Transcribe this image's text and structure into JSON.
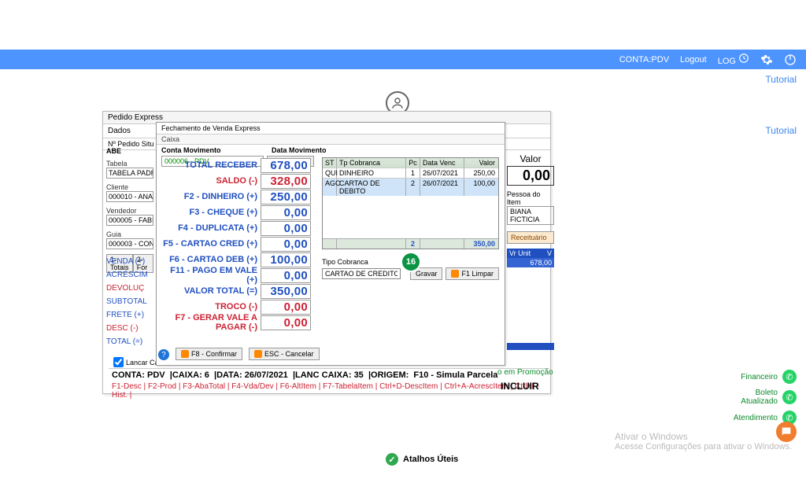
{
  "topbar": {
    "conta": "CONTA:PDV",
    "logout": "Logout",
    "log": "LOG"
  },
  "tutorial": "Tutorial",
  "pedido": {
    "title": "Pedido Express",
    "tabs": "Dados",
    "meta": "Nº Pedido    Situ",
    "abe": "ABE",
    "tabela_lbl": "Tabela",
    "tabela_val": "TABELA PADRA",
    "cliente_lbl": "Cliente",
    "cliente_val": "000010 - ANA MAR",
    "vendedor_lbl": "Vendedor",
    "vendedor_val": "000005 - FABIANA",
    "guia_lbl": "Guia",
    "guia_val": "000003 - CONSUM",
    "mini1": "1-Totais",
    "mini2": "2-For",
    "ls_venda": "VENDA (+)",
    "ls_acresc": "ACRÉSCIM",
    "ls_dev": "DEVOLUÇ",
    "ls_sub": "SUBTOTAL",
    "ls_frete": "FRETE (+)",
    "ls_desc": "DESC (-)",
    "ls_total": "TOTAL (=)"
  },
  "fech": {
    "title": "Fechamento de Venda Express",
    "caixa": "Caixa",
    "conta_lbl": "Conta Movimento",
    "conta_val": "000006 - PDV",
    "data_lbl": "Data Movimento",
    "data_val": "26/07/2021",
    "rows": [
      {
        "lbl": "TOTAL RECEBER",
        "val": "678,00",
        "color": "blue"
      },
      {
        "lbl": "SALDO (-)",
        "val": "328,00",
        "color": "red"
      },
      {
        "lbl": "F2 - DINHEIRO (+)",
        "val": "250,00",
        "color": "blue"
      },
      {
        "lbl": "F3 - CHEQUE (+)",
        "val": "0,00",
        "color": "blue"
      },
      {
        "lbl": "F4 - DUPLICATA (+)",
        "val": "0,00",
        "color": "blue"
      },
      {
        "lbl": "F5 - CARTAO CRED (+)",
        "val": "0,00",
        "color": "blue"
      },
      {
        "lbl": "F6 - CARTAO DEB (+)",
        "val": "100,00",
        "color": "blue"
      },
      {
        "lbl": "F11 - PAGO EM VALE (+)",
        "val": "0,00",
        "color": "blue"
      },
      {
        "lbl": "VALOR TOTAL (=)",
        "val": "350,00",
        "color": "blue"
      },
      {
        "lbl": "TROCO (-)",
        "val": "0,00",
        "color": "red"
      },
      {
        "lbl": "F7 - GERAR VALE A PAGAR (-)",
        "val": "0,00",
        "color": "red"
      }
    ],
    "pay_head": {
      "st": "ST",
      "tp": "Tp Cobranca",
      "pc": "Pc",
      "dv": "Data Venc",
      "vl": "Valor"
    },
    "pay_rows": [
      {
        "st": "QUI",
        "tp": "DINHEIRO",
        "pc": "1",
        "dv": "26/07/2021",
        "vl": "250,00"
      },
      {
        "st": "AGC",
        "tp": "CARTAO DE DEBITO",
        "pc": "2",
        "dv": "26/07/2021",
        "vl": "100,00"
      }
    ],
    "pay_foot_pc": "2",
    "pay_foot_vl": "350,00",
    "tipo_lbl": "Tipo Cobranca",
    "tipo_val": "CARTAO DE CREDITO",
    "btn_gravar": "Gravar",
    "btn_limpar": "F1 Limpar",
    "btn_confirm": "F8 - Confirmar",
    "btn_cancel": "ESC - Cancelar",
    "step": "16"
  },
  "right": {
    "valor_lbl": "Valor",
    "valor_val": "0,00",
    "pessoa_lbl": "Pessoa do Item",
    "pessoa_val": "BIANA FICTICIA",
    "receit": "Receituário",
    "vrunit": "Vr Unit",
    "v": "V",
    "num": "678,00"
  },
  "checkbox": "Lancar Cai",
  "footer1": {
    "conta": "CONTA: PDV",
    "caixa": "|CAIXA: 6",
    "data": "|DATA: 26/07/2021",
    "lanc": "|LANC CAIXA: 35",
    "origem": "|ORIGEM:",
    "f10": "F10 - Simula Parcela"
  },
  "promo": "o em Promoção",
  "footer2": "F1-Desc | F2-Prod | F3-AbaTotal | F4-Vda/Dev | F6-AltItem | F7-TabelaItem | Ctrl+D-DescItem | Ctrl+A-AcrescItem | Ctrl+F-Hist. |",
  "incluir": "INCLUIR",
  "atalhos": "Atalhos Úteis",
  "side": {
    "fin": "Financeiro",
    "bol1": "Boleto",
    "bol2": "Atualizado",
    "atd": "Atendimento"
  },
  "win": {
    "t1": "Ativar o Windows",
    "t2": "Acesse Configurações para ativar o Windows."
  }
}
